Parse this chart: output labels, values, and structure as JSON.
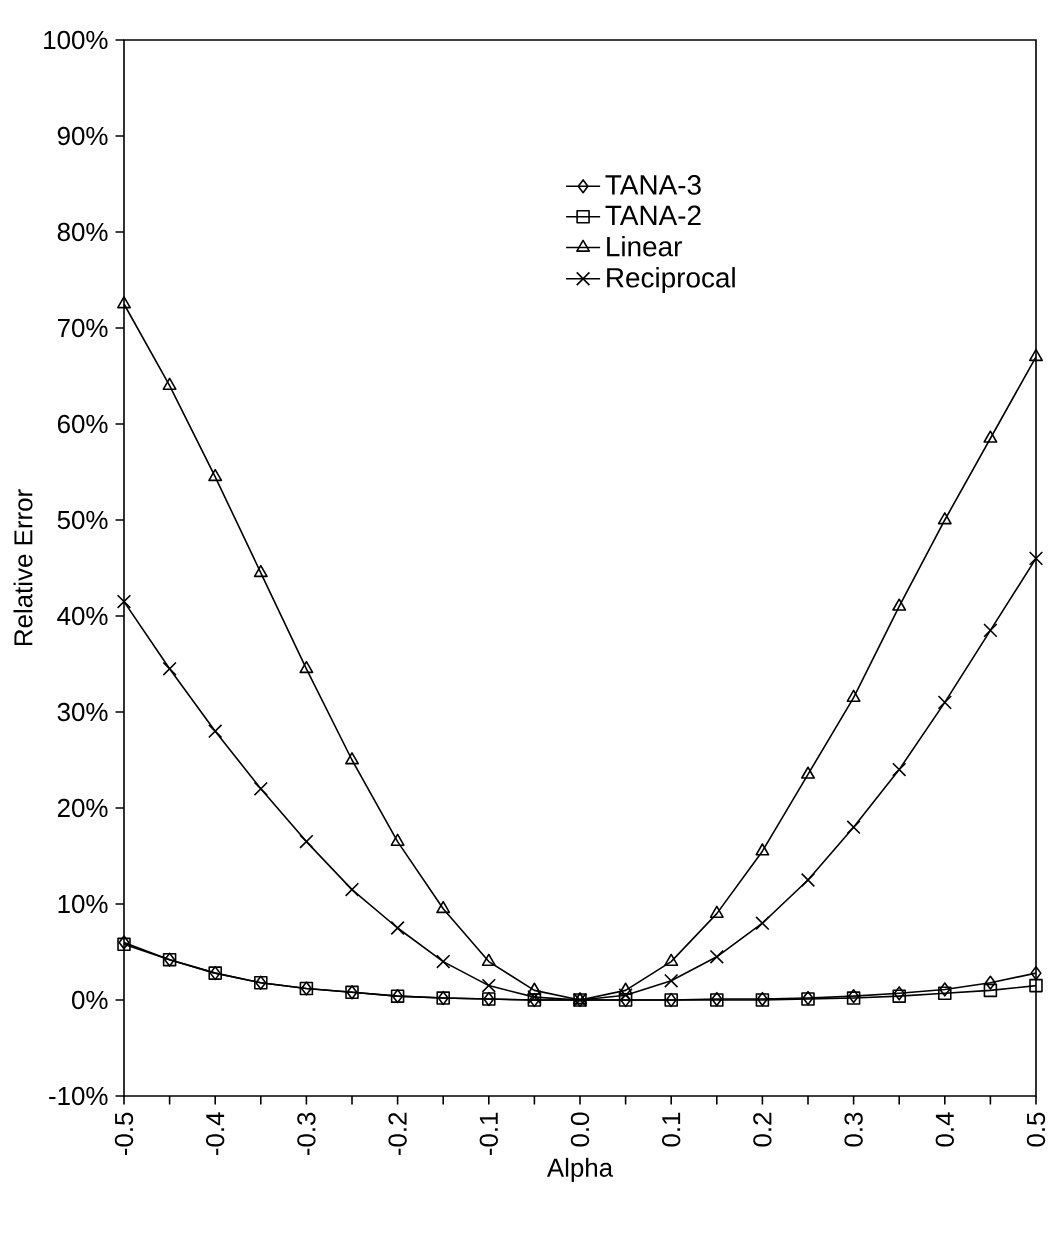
{
  "chart_data": {
    "type": "line",
    "xlabel": "Alpha",
    "ylabel": "Relative Error",
    "x": [
      -0.5,
      -0.45,
      -0.4,
      -0.35,
      -0.3,
      -0.25,
      -0.2,
      -0.15,
      -0.1,
      -0.05,
      0.0,
      0.05,
      0.1,
      0.15,
      0.2,
      0.25,
      0.3,
      0.35,
      0.4,
      0.45,
      0.5
    ],
    "series": [
      {
        "name": "TANA-3",
        "color": "#000000",
        "marker": "diamond",
        "values": [
          6,
          4.2,
          2.8,
          1.8,
          1.2,
          0.8,
          0.4,
          0.2,
          0.1,
          0,
          0,
          0,
          0,
          0.1,
          0.1,
          0.2,
          0.4,
          0.7,
          1.1,
          1.8,
          2.8
        ]
      },
      {
        "name": "TANA-2",
        "color": "#000000",
        "marker": "square",
        "values": [
          5.8,
          4.2,
          2.8,
          1.8,
          1.2,
          0.8,
          0.4,
          0.2,
          0.1,
          0,
          0,
          0,
          0,
          0,
          0,
          0.1,
          0.2,
          0.4,
          0.7,
          1,
          1.5
        ]
      },
      {
        "name": "Linear",
        "color": "#000000",
        "marker": "triangle",
        "values": [
          72.5,
          64,
          54.5,
          44.5,
          34.5,
          25,
          16.5,
          9.5,
          4,
          1,
          0,
          1,
          4,
          9,
          15.5,
          23.5,
          31.5,
          41,
          50,
          58.5,
          67
        ]
      },
      {
        "name": "Reciprocal",
        "color": "#000000",
        "marker": "cross",
        "values": [
          41.5,
          34.5,
          28,
          22,
          16.5,
          11.5,
          7.5,
          4,
          1.5,
          0.3,
          0,
          0.5,
          2,
          4.5,
          8,
          12.5,
          18,
          24,
          31,
          38.5,
          46
        ]
      }
    ],
    "xlim": [
      -0.5,
      0.5
    ],
    "xticks": [
      -0.5,
      {
        "value": -0.45,
        "label": null
      },
      -0.4,
      {
        "value": -0.35,
        "label": null
      },
      -0.3,
      {
        "value": -0.25,
        "label": null
      },
      -0.2,
      {
        "value": -0.15,
        "label": null
      },
      -0.1,
      {
        "value": -0.05,
        "label": null
      },
      {
        "value": 0,
        "label": "0.0"
      },
      {
        "value": 0.05,
        "label": null
      },
      0.1,
      {
        "value": 0.15,
        "label": null
      },
      0.2,
      {
        "value": 0.25,
        "label": null
      },
      0.3,
      {
        "value": 0.35,
        "label": null
      },
      0.4,
      {
        "value": 0.45,
        "label": null
      },
      0.5
    ],
    "ylim": [
      -10,
      100
    ],
    "yticks": [
      {
        "value": -10,
        "label": "-10%"
      },
      {
        "value": 0,
        "label": "0%"
      },
      {
        "value": 10,
        "label": "10%"
      },
      {
        "value": 20,
        "label": "20%"
      },
      {
        "value": 30,
        "label": "30%"
      },
      {
        "value": 40,
        "label": "40%"
      },
      {
        "value": 50,
        "label": "50%"
      },
      {
        "value": 60,
        "label": "60%"
      },
      {
        "value": 70,
        "label": "70%"
      },
      {
        "value": 80,
        "label": "80%"
      },
      {
        "value": 90,
        "label": "90%"
      },
      {
        "value": 100,
        "label": "100%"
      }
    ],
    "grid": false,
    "legend": "top",
    "line_style": "solid"
  }
}
